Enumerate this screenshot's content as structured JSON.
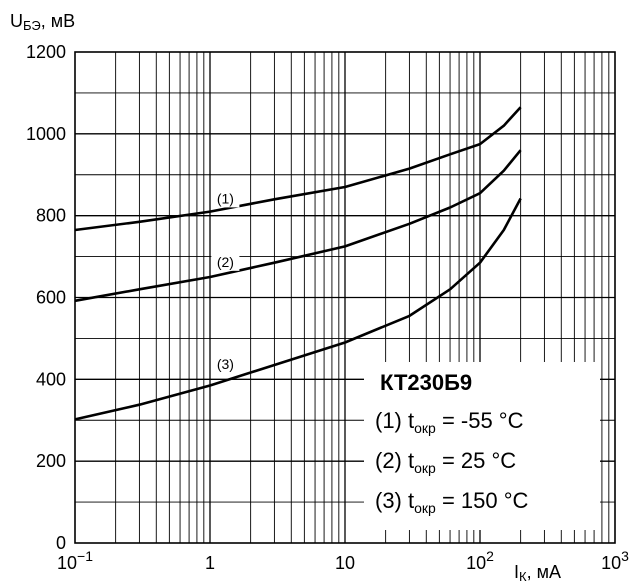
{
  "chart_data": {
    "type": "line",
    "x_scale": "log",
    "grid": true,
    "xlim": [
      0.1,
      1000
    ],
    "ylim": [
      0,
      1200
    ],
    "xlabel": {
      "main": "I",
      "sub": "К",
      "unit": ", мА"
    },
    "ylabel": {
      "main": "U",
      "sub": "БЭ",
      "unit": ", мВ"
    },
    "x_ticks": [
      {
        "value": 0.1,
        "base": "10",
        "exp": "−1"
      },
      {
        "value": 1,
        "base": "1",
        "exp": ""
      },
      {
        "value": 10,
        "base": "10",
        "exp": ""
      },
      {
        "value": 100,
        "base": "10",
        "exp": "2"
      },
      {
        "value": 1000,
        "base": "10",
        "exp": "3"
      }
    ],
    "y_ticks": [
      "0",
      "200",
      "400",
      "600",
      "800",
      "1000",
      "1200"
    ],
    "series": [
      {
        "tag": "(1)",
        "label_at": [
          1.3,
          830
        ],
        "x": [
          0.1,
          0.3,
          1,
          3,
          10,
          30,
          60,
          100,
          150,
          200
        ],
        "y": [
          765,
          785,
          810,
          840,
          870,
          915,
          950,
          975,
          1020,
          1065
        ]
      },
      {
        "tag": "(2)",
        "label_at": [
          1.3,
          675
        ],
        "x": [
          0.1,
          0.3,
          1,
          3,
          10,
          30,
          60,
          100,
          150,
          200
        ],
        "y": [
          592,
          620,
          650,
          685,
          725,
          780,
          820,
          855,
          910,
          960
        ]
      },
      {
        "tag": "(3)",
        "label_at": [
          1.3,
          425
        ],
        "x": [
          0.1,
          0.3,
          1,
          3,
          10,
          30,
          60,
          100,
          150,
          200
        ],
        "y": [
          302,
          338,
          385,
          435,
          490,
          555,
          620,
          685,
          765,
          842
        ]
      }
    ],
    "legend": {
      "title": "КТ230Б9",
      "entries": [
        {
          "prefix": "(1) t",
          "sub": "окр",
          "suffix": " = -55 °C"
        },
        {
          "prefix": "(2) t",
          "sub": "окр",
          "suffix": " =  25 °C"
        },
        {
          "prefix": "(3) t",
          "sub": "окр",
          "suffix": " = 150 °C"
        }
      ]
    }
  }
}
